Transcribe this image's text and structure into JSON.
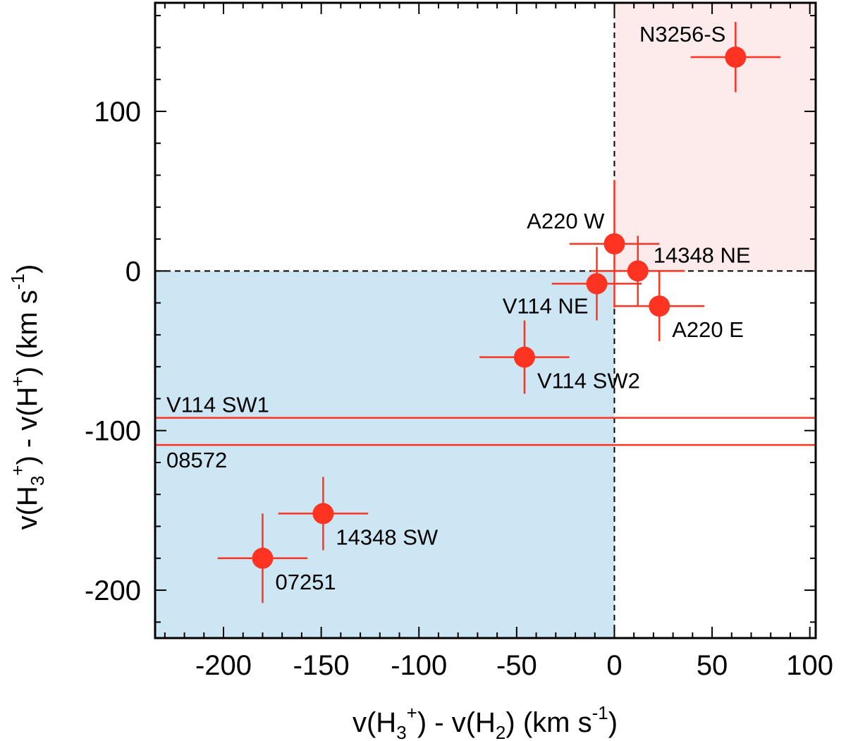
{
  "chart_data": {
    "type": "scatter",
    "xlabel": {
      "prefix": "v(H",
      "sub1": "3",
      "sup1": "+",
      "middle": ") - v(H",
      "sub2": "2",
      "unit": ") (km s",
      "unit_sup": "-1",
      "close": ")"
    },
    "ylabel": {
      "prefix": "v(H",
      "sub1": "3",
      "sup1": "+",
      "middle": ") - v(H",
      "sup2": "+",
      "unit": ") (km s",
      "unit_sup": "-1",
      "close": ")"
    },
    "xlim": [
      -235,
      103
    ],
    "ylim": [
      -230,
      168
    ],
    "x_ticks": [
      -200,
      -150,
      -100,
      -50,
      0,
      50,
      100
    ],
    "x_tick_labels": [
      "-200",
      "-150",
      "-100",
      "-50",
      "0",
      "50",
      "100"
    ],
    "y_ticks": [
      -200,
      -100,
      0,
      100
    ],
    "y_tick_labels": [
      "-200",
      "-100",
      "0",
      "100"
    ],
    "point_color": "#ff3322",
    "regions": [
      {
        "name": "positive-quadrant",
        "x": [
          0,
          103
        ],
        "y": [
          0,
          168
        ],
        "color": "#fdeaea"
      },
      {
        "name": "negative-quadrant",
        "x": [
          -235,
          0
        ],
        "y": [
          -230,
          0
        ],
        "color": "#cce6f4"
      }
    ],
    "points": [
      {
        "label": "N3256-S",
        "x": 62,
        "y": 134,
        "xerr": 23,
        "yerr": 22,
        "label_pos": "left-top"
      },
      {
        "label": "A220 W",
        "x": 0,
        "y": 17,
        "xerr": 23,
        "yerr": 40,
        "label_pos": "left-top"
      },
      {
        "label": "14348 NE",
        "x": 12,
        "y": 0,
        "xerr": 24,
        "yerr": 22,
        "label_pos": "right-top"
      },
      {
        "label": "V114 NE",
        "x": -9,
        "y": -8,
        "xerr": 23,
        "yerr": 23,
        "label_pos": "left-bottom"
      },
      {
        "label": "A220 E",
        "x": 23,
        "y": -22,
        "xerr": 23,
        "yerr": 22,
        "label_pos": "right-bottom"
      },
      {
        "label": "V114 SW2",
        "x": -46,
        "y": -54,
        "xerr": 23,
        "yerr": 23,
        "label_pos": "right-bottom"
      },
      {
        "label": "14348 SW",
        "x": -149,
        "y": -152,
        "xerr": 23,
        "yerr": 23,
        "label_pos": "right-bottom"
      },
      {
        "label": "07251",
        "x": -180,
        "y": -180,
        "xerr": 23,
        "yerr": 28,
        "label_pos": "right-bottom"
      }
    ],
    "hlines": [
      {
        "label": "V114 SW1",
        "y": -92,
        "label_pos": "above"
      },
      {
        "label": "08572",
        "y": -109,
        "label_pos": "below"
      }
    ],
    "dashed_lines": {
      "x": 0,
      "y": 0
    }
  }
}
